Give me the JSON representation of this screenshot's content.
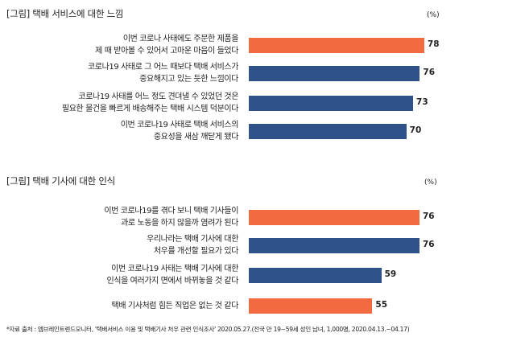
{
  "chart_data": [
    {
      "type": "bar",
      "orientation": "horizontal",
      "title": "[그림] 택배 서비스에 대한 느낌",
      "unit": "(%)",
      "categories": [
        [
          "이번 코로나 사태에도 주문한 제품을",
          "제 때 받아볼 수 있어서 고마운 마음이 들었다"
        ],
        [
          "코로나19 사태로 그 어느 때보다 택배 서비스가",
          "중요해지고 있는 듯한 느낌이다"
        ],
        [
          "코로나19 사태를 어느 정도 견뎌낼 수 있었던 것은",
          "필요한 물건을 빠르게 배송해주는 택배 시스템 덕분이다"
        ],
        [
          "이번 코로나19 사태로 택배 서비스의",
          "중요성을 새삼 깨닫게 됐다"
        ]
      ],
      "values": [
        78,
        76,
        73,
        70
      ],
      "colors": [
        "#f26a3f",
        "#2e5289",
        "#2e5289",
        "#2e5289"
      ]
    },
    {
      "type": "bar",
      "orientation": "horizontal",
      "title": "[그림] 택배 기사에 대한 인식",
      "unit": "(%)",
      "categories": [
        [
          "이번 코로나19를 겪다 보니 택배 기사들이",
          "과로 노동을 하지 않을까 염려가 된다"
        ],
        [
          "우리나라는 택배 기사에 대한",
          "처우를 개선할 필요가 있다"
        ],
        [
          "이번 코로나19 사태는 택배 기사에 대한",
          "인식을 여러가지 면에서 바뀌놓을 것 같다"
        ],
        [
          "택배 기사처럼 힘든 직업은 없는 것 같다"
        ]
      ],
      "values": [
        76,
        76,
        59,
        55
      ],
      "colors": [
        "#f26a3f",
        "#2e5289",
        "#2e5289",
        "#f26a3f"
      ]
    }
  ],
  "source": "*자료 출처 : 엠브레인트렌드모니터, '택배서비스 이용 및 택배기사 처우 관련 인식조사' 2020.05.27.(전국 만 19~59세 성인 남녀, 1,000명, 2020.04.13.~04.17)"
}
